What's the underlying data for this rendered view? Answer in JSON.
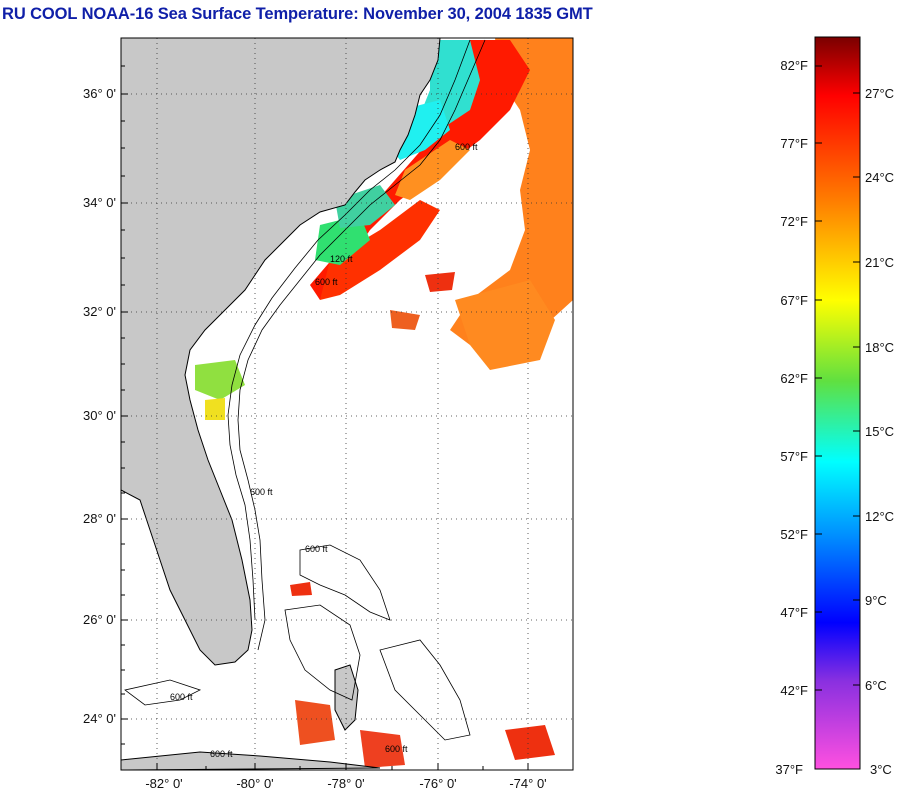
{
  "title": "RU COOL  NOAA-16  Sea Surface Temperature:  November 30, 2004 1835 GMT",
  "map": {
    "lon_range": [
      -83.0,
      -73.0
    ],
    "lat_range": [
      23.0,
      37.0
    ],
    "lat_ticks": [
      "36° 0'",
      "34° 0'",
      "32° 0'",
      "30° 0'",
      "28° 0'",
      "26° 0'",
      "24° 0'"
    ],
    "lon_ticks": [
      "-82° 0'",
      "-80° 0'",
      "-78° 0'",
      "-76° 0'",
      "-74° 0'"
    ],
    "land_color": "#c8c8c8",
    "water_no_data_color": "#ffffff",
    "grid": "dotted",
    "contour_labels": [
      "600 ft",
      "120 ft",
      "600 ft",
      "600 ft",
      "600 ft",
      "600 ft",
      "600 ft",
      "600 ft"
    ]
  },
  "colorbar": {
    "fahrenheit_labels": [
      "82°F",
      "77°F",
      "72°F",
      "67°F",
      "62°F",
      "57°F",
      "52°F",
      "47°F",
      "42°F",
      "37°F"
    ],
    "celsius_labels": [
      "27°C",
      "24°C",
      "21°C",
      "18°C",
      "15°C",
      "12°C",
      "9°C",
      "6°C",
      "3°C"
    ],
    "colors_top_to_bottom": [
      "#8b0000",
      "#ff0000",
      "#ff7000",
      "#ffff00",
      "#00e050",
      "#00ffff",
      "#0000ff",
      "#9a30e0",
      "#ff50e0"
    ]
  }
}
